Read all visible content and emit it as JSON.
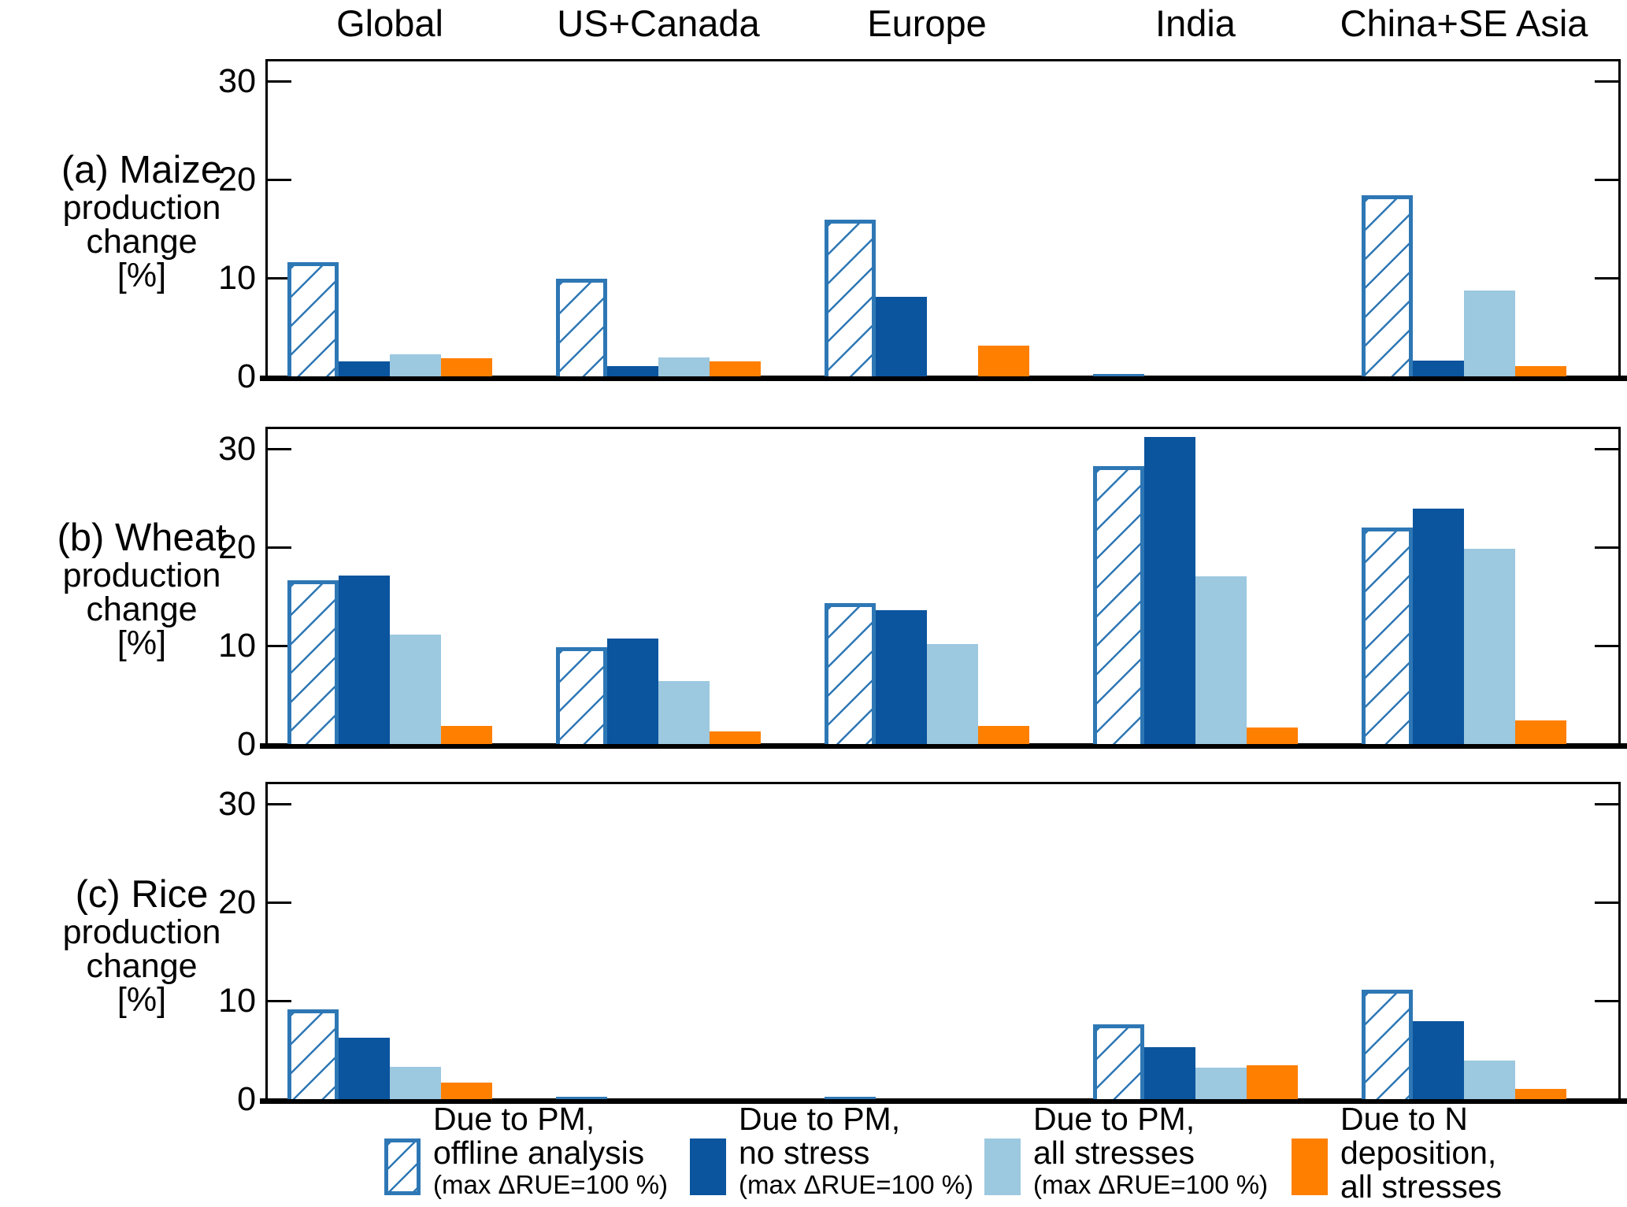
{
  "figure": {
    "regions": [
      "Global",
      "US+Canada",
      "Europe",
      "India",
      "China+SE Asia"
    ]
  },
  "chart_data": [
    {
      "type": "bar",
      "panel_label": "(a) Maize",
      "ylabel_lines": [
        "production",
        "change",
        "[%]"
      ],
      "categories": [
        "Global",
        "US+Canada",
        "Europe",
        "India",
        "China+SE Asia"
      ],
      "series": [
        {
          "name": "Due to PM, offline analysis (max ΔRUE=100 %)",
          "values": [
            11.6,
            9.9,
            15.9,
            0.2,
            18.4
          ]
        },
        {
          "name": "Due to PM, no stress (max ΔRUE=100 %)",
          "values": [
            1.5,
            1.0,
            8.1,
            0,
            1.6
          ]
        },
        {
          "name": "Due to PM, all stresses (max ΔRUE=100 %)",
          "values": [
            2.2,
            1.9,
            0,
            0,
            8.7
          ]
        },
        {
          "name": "Due to N deposition, all stresses",
          "values": [
            1.8,
            1.5,
            3.1,
            0,
            1.0
          ]
        }
      ],
      "ylim": [
        0,
        32
      ],
      "yticks": [
        0,
        10,
        20,
        30
      ],
      "grid": false
    },
    {
      "type": "bar",
      "panel_label": "(b) Wheat",
      "ylabel_lines": [
        "production",
        "change",
        "[%]"
      ],
      "categories": [
        "Global",
        "US+Canada",
        "Europe",
        "India",
        "China+SE Asia"
      ],
      "series": [
        {
          "name": "Due to PM, offline analysis (max ΔRUE=100 %)",
          "values": [
            16.6,
            9.8,
            14.3,
            28.2,
            22.0
          ]
        },
        {
          "name": "Due to PM, no stress (max ΔRUE=100 %)",
          "values": [
            17.1,
            10.7,
            13.6,
            31.2,
            23.9
          ]
        },
        {
          "name": "Due to PM, all stresses (max ΔRUE=100 %)",
          "values": [
            11.1,
            6.4,
            10.2,
            17.0,
            19.8
          ]
        },
        {
          "name": "Due to N deposition, all stresses",
          "values": [
            1.8,
            1.3,
            1.8,
            1.7,
            2.4
          ]
        }
      ],
      "ylim": [
        0,
        32
      ],
      "yticks": [
        0,
        10,
        20,
        30
      ],
      "grid": false
    },
    {
      "type": "bar",
      "panel_label": "(c) Rice",
      "ylabel_lines": [
        "production",
        "change",
        "[%]"
      ],
      "categories": [
        "Global",
        "US+Canada",
        "Europe",
        "India",
        "China+SE Asia"
      ],
      "series": [
        {
          "name": "Due to PM, offline analysis (max ΔRUE=100 %)",
          "values": [
            9.1,
            0.15,
            0.15,
            7.6,
            11.1
          ]
        },
        {
          "name": "Due to PM, no stress (max ΔRUE=100 %)",
          "values": [
            6.2,
            0,
            0,
            5.3,
            7.9
          ]
        },
        {
          "name": "Due to PM, all stresses (max ΔRUE=100 %)",
          "values": [
            3.3,
            0,
            0,
            3.2,
            3.9
          ]
        },
        {
          "name": "Due to N deposition, all stresses",
          "values": [
            1.7,
            0,
            0,
            3.4,
            1.0
          ]
        }
      ],
      "ylim": [
        0,
        32
      ],
      "yticks": [
        0,
        10,
        20,
        30
      ],
      "grid": false
    }
  ],
  "legend": {
    "position": "bottom",
    "items": [
      {
        "lines": [
          "Due to PM,",
          "offline analysis",
          "(max ΔRUE=100 %)"
        ],
        "style": "hatched"
      },
      {
        "lines": [
          "Due to PM,",
          "no stress",
          "(max ΔRUE=100 %)"
        ],
        "style": "solid-dark-blue"
      },
      {
        "lines": [
          "Due to PM,",
          "all stresses",
          "(max ΔRUE=100 %)"
        ],
        "style": "solid-light-blue"
      },
      {
        "lines": [
          "Due to N",
          "deposition,",
          "all stresses"
        ],
        "style": "solid-orange"
      }
    ]
  },
  "colors": {
    "hatch_outline_blue": "#2E77B5",
    "no_stress_dark_blue": "#0B549E",
    "all_stresses_light_blue": "#9CC8E0",
    "n_deposition_orange": "#FF7F00",
    "axis": "#000000"
  }
}
